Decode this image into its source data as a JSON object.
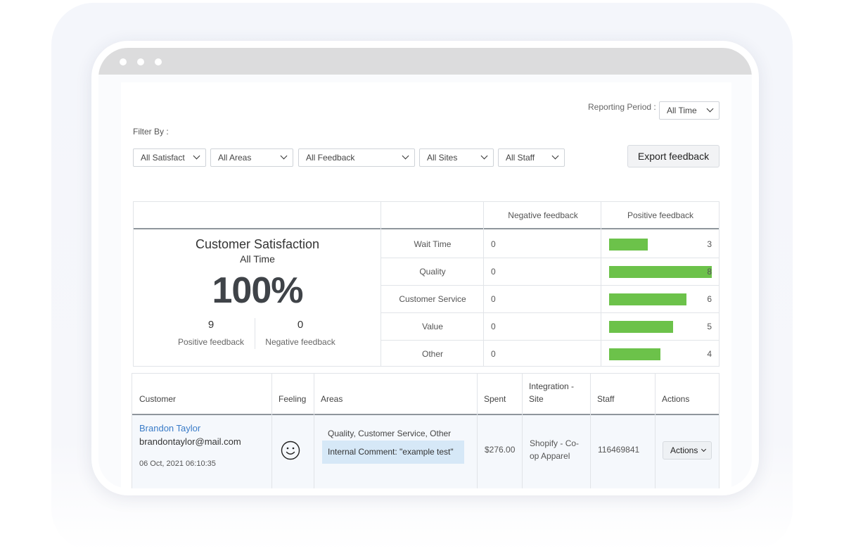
{
  "reporting_period": {
    "label": "Reporting Period :",
    "value": "All Time"
  },
  "filters": {
    "label": "Filter By :",
    "satisfaction": "All Satisfact",
    "areas": "All Areas",
    "feedback": "All Feedback",
    "sites": "All Sites",
    "staff": "All Staff"
  },
  "export_label": "Export feedback",
  "summary": {
    "title": "Customer Satisfaction",
    "period": "All Time",
    "percent": "100%",
    "positive_count": "9",
    "positive_label": "Positive feedback",
    "negative_count": "0",
    "negative_label": "Negative feedback"
  },
  "breakdown": {
    "headers": {
      "negative": "Negative feedback",
      "positive": "Positive feedback"
    },
    "max_positive": 8,
    "bar_color": "#6cc24a",
    "rows": [
      {
        "area": "Wait Time",
        "negative": "0",
        "positive": 3
      },
      {
        "area": "Quality",
        "negative": "0",
        "positive": 8
      },
      {
        "area": "Customer Service",
        "negative": "0",
        "positive": 6
      },
      {
        "area": "Value",
        "negative": "0",
        "positive": 5
      },
      {
        "area": "Other",
        "negative": "0",
        "positive": 4
      }
    ]
  },
  "table": {
    "headers": {
      "customer": "Customer",
      "feeling": "Feeling",
      "areas": "Areas",
      "spent": "Spent",
      "integration_line1": "Integration -",
      "integration_line2": "Site",
      "staff": "Staff",
      "actions": "Actions"
    },
    "row": {
      "name": "Brandon Taylor",
      "email": "brandontaylor@mail.com",
      "date": "06 Oct, 2021 06:10:35",
      "feeling_icon": "smiley-icon",
      "areas": "Quality, Customer Service, Other",
      "comment": "Internal Comment: \"example test\"",
      "spent": "$276.00",
      "site_line1": "Shopify - Co-",
      "site_line2": "op Apparel",
      "staff": "116469841",
      "actions_label": "Actions"
    }
  }
}
